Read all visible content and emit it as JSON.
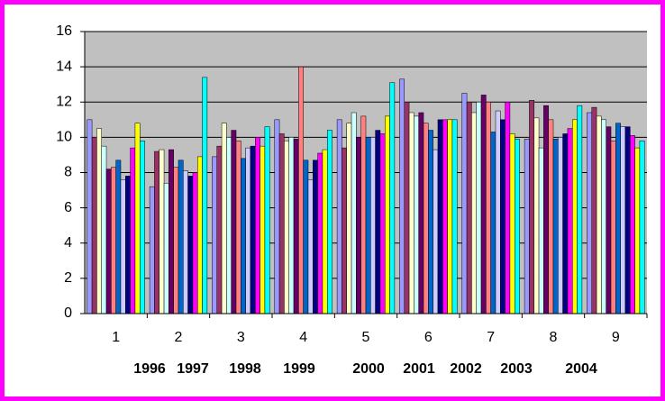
{
  "chart_data": {
    "type": "bar",
    "categories": [
      "1",
      "2",
      "3",
      "4",
      "5",
      "6",
      "7",
      "8",
      "9"
    ],
    "series": [
      {
        "color": "#9999ff",
        "values": [
          11,
          7.2,
          8.9,
          11,
          11,
          13.3,
          12.5,
          9.9,
          11.4
        ]
      },
      {
        "color": "#993366",
        "values": [
          10,
          9.2,
          9.5,
          10.2,
          9.4,
          12,
          12,
          12.1,
          11.7
        ]
      },
      {
        "color": "#ffffcc",
        "values": [
          10.5,
          9.3,
          10.8,
          9.8,
          10.8,
          11.4,
          11.4,
          11.1,
          11.2
        ]
      },
      {
        "color": "#ccffff",
        "values": [
          9.5,
          7.4,
          10,
          10,
          11.4,
          11.2,
          12,
          9.4,
          11
        ]
      },
      {
        "color": "#660066",
        "values": [
          8.2,
          9.3,
          10.4,
          9.9,
          10,
          11.4,
          12.4,
          11.8,
          10.6
        ]
      },
      {
        "color": "#ff8080",
        "values": [
          8.3,
          8.3,
          9.8,
          14,
          11.2,
          10.8,
          12,
          11,
          9.8
        ]
      },
      {
        "color": "#0066cc",
        "values": [
          8.7,
          8.7,
          8.8,
          8.7,
          10,
          10.4,
          10.3,
          9.9,
          10.8
        ]
      },
      {
        "color": "#ccccff",
        "values": [
          7.6,
          8.1,
          9.4,
          7.6,
          10,
          9.3,
          11.5,
          10,
          10.6
        ]
      },
      {
        "color": "#000080",
        "values": [
          7.8,
          7.8,
          9.5,
          8.7,
          10.4,
          11,
          11,
          10.2,
          10.6
        ]
      },
      {
        "color": "#ff00ff",
        "values": [
          9.4,
          8,
          10,
          9.1,
          10.2,
          11,
          12,
          10.5,
          10.1
        ]
      },
      {
        "color": "#ffff00",
        "values": [
          10.8,
          8.9,
          9.5,
          9.3,
          11.2,
          11,
          10.2,
          11,
          9.4
        ]
      },
      {
        "color": "#00ffff",
        "values": [
          9.8,
          13.4,
          10.6,
          10.4,
          13.1,
          11,
          9.9,
          11.8,
          9.8
        ]
      }
    ],
    "annotations": [
      "1996",
      "1997",
      "1998",
      "1999",
      "2000",
      "2001",
      "2002",
      "2003",
      "2004"
    ],
    "ylim": [
      0,
      16
    ],
    "yticks": [
      0,
      2,
      4,
      6,
      8,
      10,
      12,
      14,
      16
    ],
    "grid": true,
    "plot_color": "#c0c0c0",
    "border_color": "#ff00ff"
  }
}
